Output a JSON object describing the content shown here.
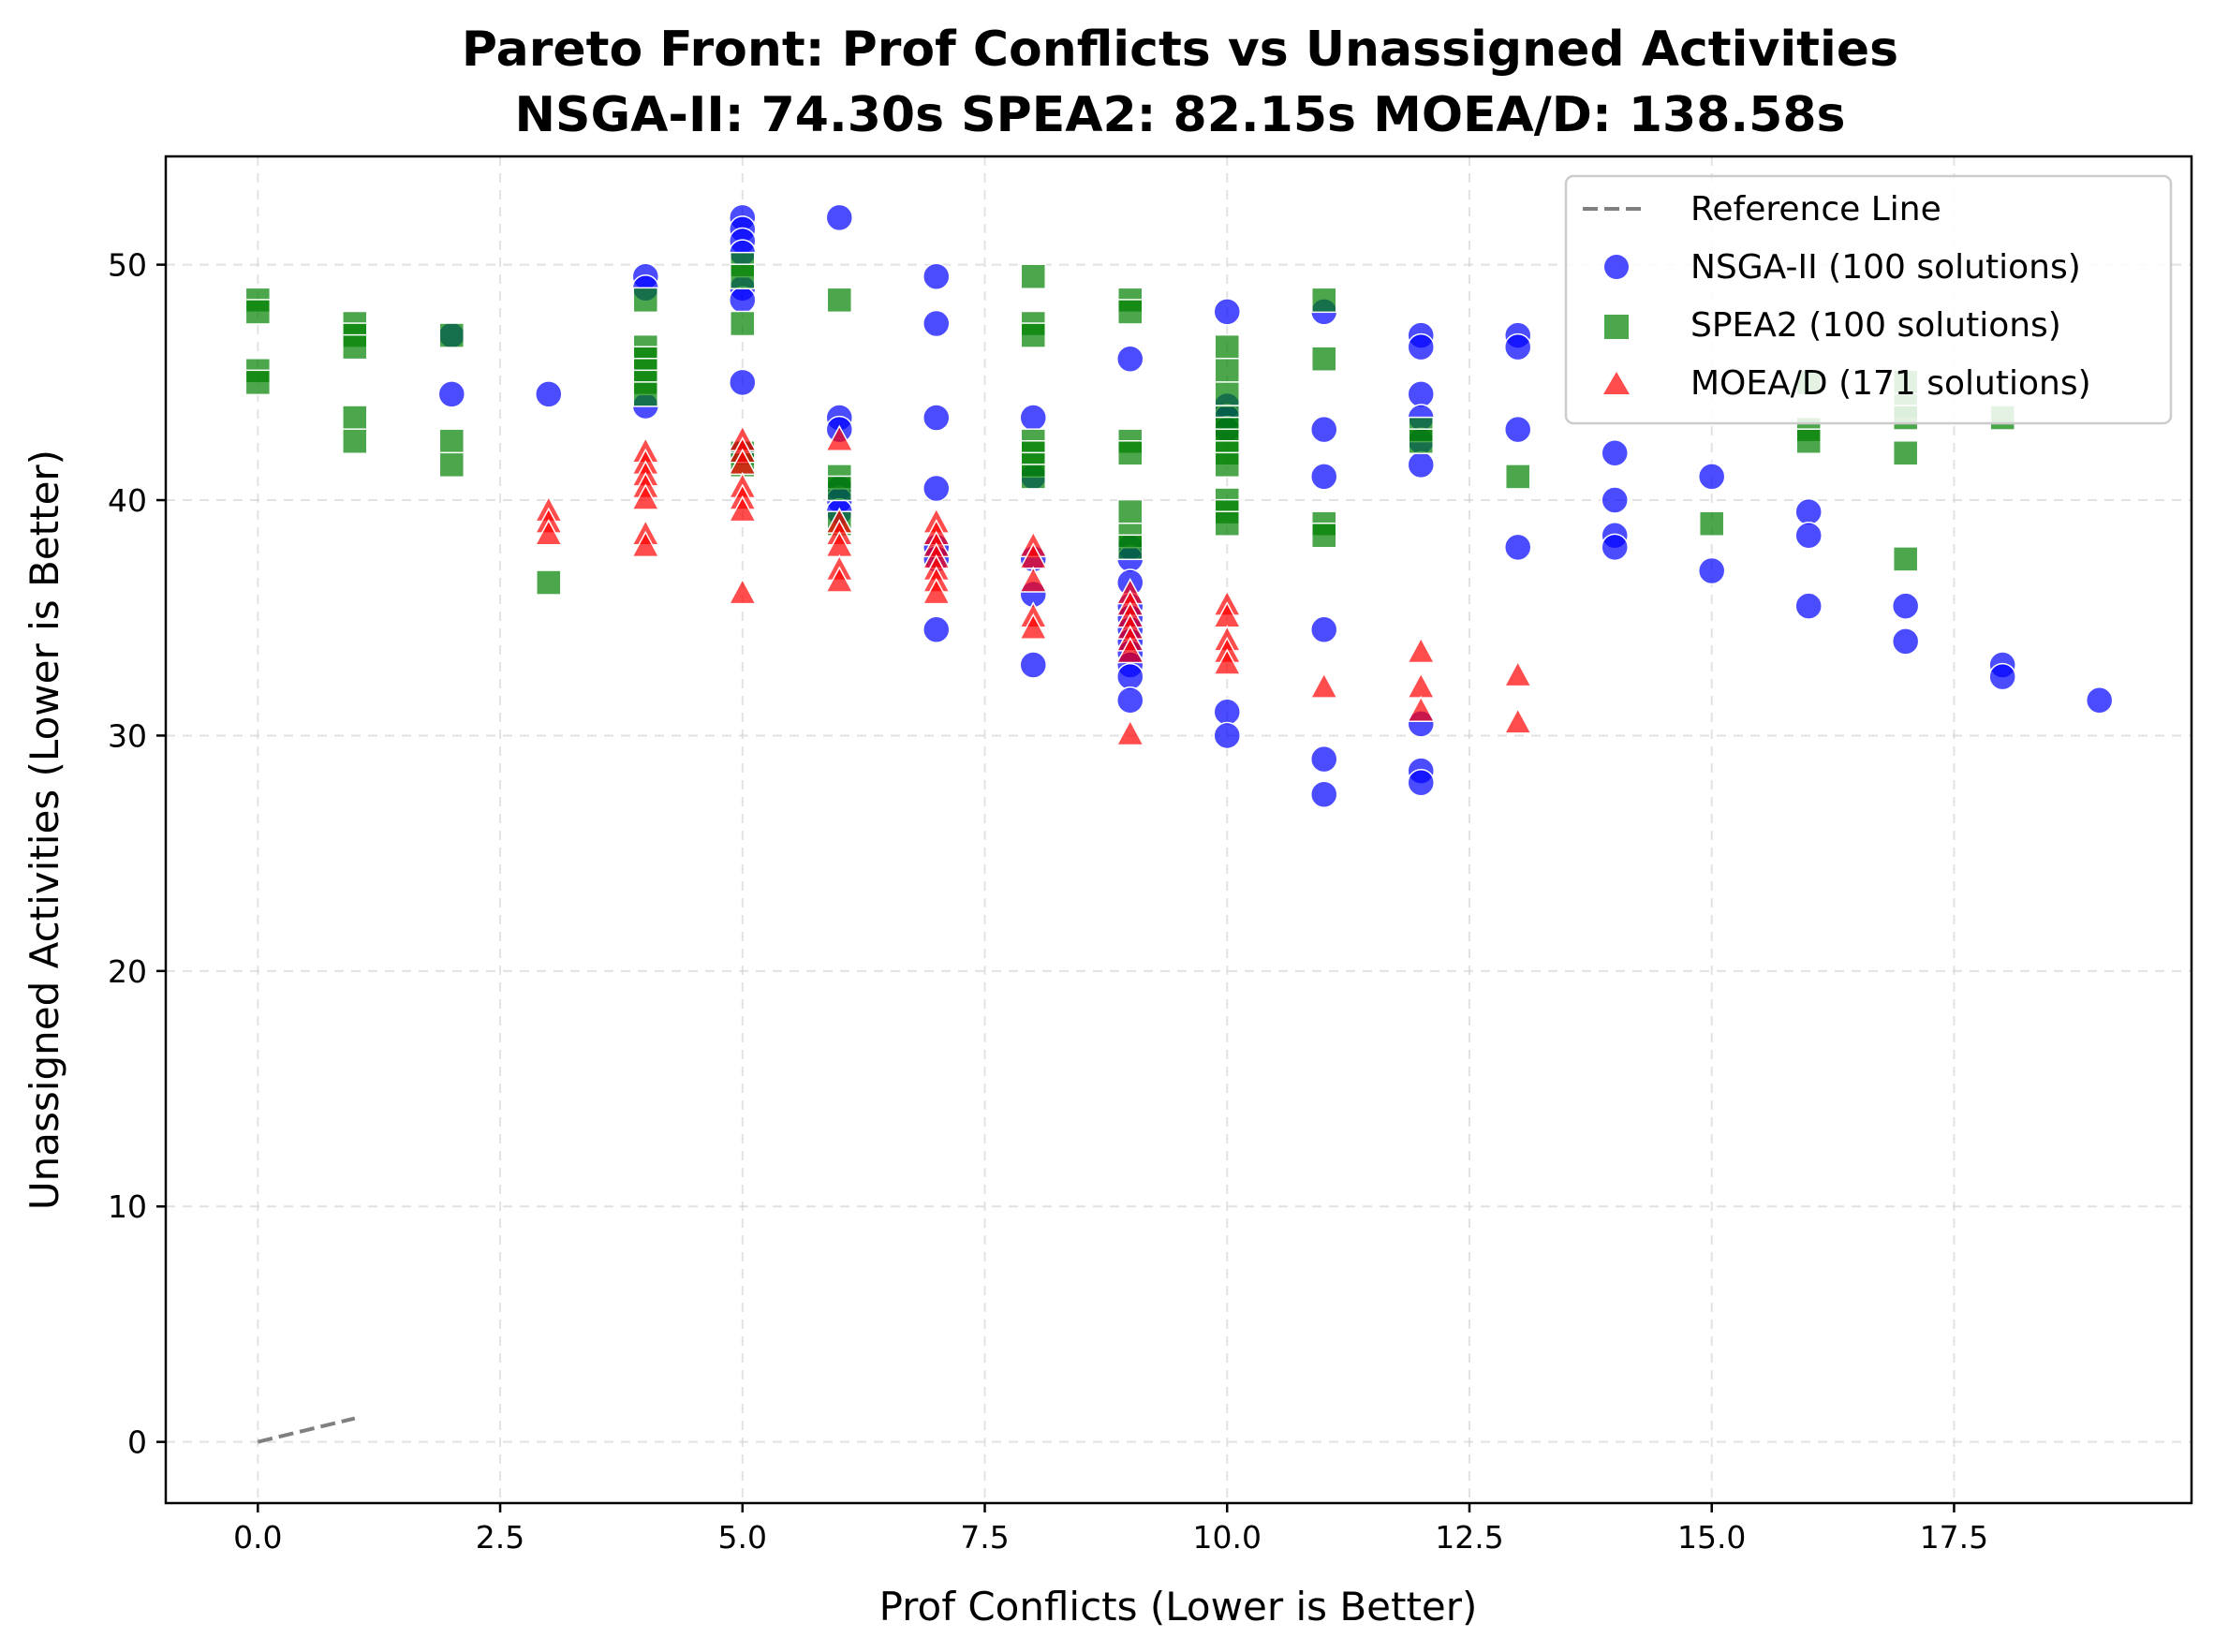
{
  "chart_data": {
    "type": "scatter",
    "title": "Pareto Front: Prof Conflicts vs Unassigned Activities",
    "subtitle": "NSGA-II: 74.30s  SPEA2: 82.15s  MOEA/D: 138.58s",
    "xlabel": "Prof Conflicts (Lower is Better)",
    "ylabel": "Unassigned Activities (Lower is Better)",
    "xlim": [
      -0.95,
      19.95
    ],
    "ylim": [
      -2.6,
      54.6
    ],
    "xticks": [
      0.0,
      2.5,
      5.0,
      7.5,
      10.0,
      12.5,
      15.0,
      17.5
    ],
    "xtick_labels": [
      "0.0",
      "2.5",
      "5.0",
      "7.5",
      "10.0",
      "12.5",
      "15.0",
      "17.5"
    ],
    "yticks": [
      0,
      10,
      20,
      30,
      40,
      50
    ],
    "ytick_labels": [
      "0",
      "10",
      "20",
      "30",
      "40",
      "50"
    ],
    "grid": true,
    "legend_position": "top-right",
    "reference_line": {
      "name": "Reference Line",
      "color": "#808080",
      "points": [
        [
          0,
          0
        ],
        [
          1,
          1
        ]
      ]
    },
    "series": [
      {
        "name": "NSGA-II (100 solutions)",
        "marker": "circle",
        "color": "#0000ff",
        "points": [
          [
            2,
            47
          ],
          [
            2,
            44.5
          ],
          [
            3,
            44.5
          ],
          [
            4,
            49.5
          ],
          [
            4,
            49
          ],
          [
            4,
            44
          ],
          [
            5,
            52
          ],
          [
            5,
            51.5
          ],
          [
            5,
            51
          ],
          [
            5,
            50.5
          ],
          [
            5,
            49
          ],
          [
            5,
            48.5
          ],
          [
            5,
            45
          ],
          [
            5,
            42
          ],
          [
            6,
            52
          ],
          [
            6,
            43.5
          ],
          [
            6,
            43
          ],
          [
            6,
            40.5
          ],
          [
            6,
            40
          ],
          [
            6,
            39.5
          ],
          [
            7,
            49.5
          ],
          [
            7,
            47.5
          ],
          [
            7,
            43.5
          ],
          [
            7,
            40.5
          ],
          [
            7,
            38
          ],
          [
            7,
            37.5
          ],
          [
            7,
            34.5
          ],
          [
            8,
            43.5
          ],
          [
            8,
            41
          ],
          [
            8,
            37.5
          ],
          [
            8,
            36
          ],
          [
            8,
            33
          ],
          [
            9,
            46
          ],
          [
            9,
            38
          ],
          [
            9,
            37.5
          ],
          [
            9,
            36.5
          ],
          [
            9,
            35.5
          ],
          [
            9,
            35
          ],
          [
            9,
            34.5
          ],
          [
            9,
            34
          ],
          [
            9,
            33.5
          ],
          [
            9,
            33
          ],
          [
            9,
            32.5
          ],
          [
            9,
            31.5
          ],
          [
            10,
            48
          ],
          [
            10,
            44
          ],
          [
            10,
            43.5
          ],
          [
            10,
            43
          ],
          [
            10,
            31
          ],
          [
            10,
            30
          ],
          [
            11,
            48
          ],
          [
            11,
            43
          ],
          [
            11,
            41
          ],
          [
            11,
            34.5
          ],
          [
            11,
            29
          ],
          [
            11,
            27.5
          ],
          [
            12,
            47
          ],
          [
            12,
            46.5
          ],
          [
            12,
            44.5
          ],
          [
            12,
            43.5
          ],
          [
            12,
            42.5
          ],
          [
            12,
            41.5
          ],
          [
            12,
            30.5
          ],
          [
            12,
            28.5
          ],
          [
            12,
            28
          ],
          [
            13,
            47
          ],
          [
            13,
            46.5
          ],
          [
            13,
            43
          ],
          [
            13,
            38
          ],
          [
            14,
            42
          ],
          [
            14,
            40
          ],
          [
            14,
            38.5
          ],
          [
            14,
            38
          ],
          [
            15,
            41
          ],
          [
            15,
            37
          ],
          [
            16,
            39.5
          ],
          [
            16,
            38.5
          ],
          [
            16,
            35.5
          ],
          [
            17,
            35.5
          ],
          [
            17,
            34
          ],
          [
            18,
            33
          ],
          [
            18,
            32.5
          ],
          [
            19,
            31.5
          ]
        ]
      },
      {
        "name": "SPEA2 (100 solutions)",
        "marker": "square",
        "color": "#008000",
        "points": [
          [
            0,
            48.5
          ],
          [
            0,
            48
          ],
          [
            0,
            45.5
          ],
          [
            0,
            45
          ],
          [
            1,
            47.5
          ],
          [
            1,
            47
          ],
          [
            1,
            46.5
          ],
          [
            1,
            43.5
          ],
          [
            1,
            42.5
          ],
          [
            2,
            47
          ],
          [
            2,
            42.5
          ],
          [
            2,
            41.5
          ],
          [
            3,
            36.5
          ],
          [
            4,
            48.5
          ],
          [
            4,
            46.5
          ],
          [
            4,
            46
          ],
          [
            4,
            45.5
          ],
          [
            4,
            45
          ],
          [
            4,
            44.5
          ],
          [
            5,
            50
          ],
          [
            5,
            49.5
          ],
          [
            5,
            47.5
          ],
          [
            5,
            42
          ],
          [
            5,
            41.5
          ],
          [
            6,
            48.5
          ],
          [
            6,
            41
          ],
          [
            6,
            40.5
          ],
          [
            6,
            39
          ],
          [
            8,
            49.5
          ],
          [
            8,
            47.5
          ],
          [
            8,
            47
          ],
          [
            8,
            42.5
          ],
          [
            8,
            42
          ],
          [
            8,
            41.5
          ],
          [
            8,
            41
          ],
          [
            9,
            48.5
          ],
          [
            9,
            48
          ],
          [
            9,
            42.5
          ],
          [
            9,
            42
          ],
          [
            9,
            39.5
          ],
          [
            9,
            38.5
          ],
          [
            9,
            38
          ],
          [
            10,
            46.5
          ],
          [
            10,
            45.5
          ],
          [
            10,
            44.5
          ],
          [
            10,
            43.5
          ],
          [
            10,
            43
          ],
          [
            10,
            42.5
          ],
          [
            10,
            42
          ],
          [
            10,
            41.5
          ],
          [
            10,
            40
          ],
          [
            10,
            39.5
          ],
          [
            10,
            39
          ],
          [
            11,
            48.5
          ],
          [
            11,
            46
          ],
          [
            11,
            39
          ],
          [
            11,
            38.5
          ],
          [
            12,
            43
          ],
          [
            12,
            42.5
          ],
          [
            13,
            41
          ],
          [
            15,
            39
          ],
          [
            16,
            45
          ],
          [
            16,
            43
          ],
          [
            16,
            42.5
          ],
          [
            17,
            45
          ],
          [
            17,
            44
          ],
          [
            17,
            43.5
          ],
          [
            17,
            42
          ],
          [
            17,
            37.5
          ],
          [
            18,
            43.5
          ]
        ]
      },
      {
        "name": "MOEA/D (171 solutions)",
        "marker": "triangle",
        "color": "#ff0000",
        "points": [
          [
            3,
            39.5
          ],
          [
            3,
            39
          ],
          [
            3,
            38.5
          ],
          [
            4,
            42
          ],
          [
            4,
            41.5
          ],
          [
            4,
            41
          ],
          [
            4,
            40.5
          ],
          [
            4,
            40
          ],
          [
            4,
            38.5
          ],
          [
            4,
            38
          ],
          [
            5,
            42.5
          ],
          [
            5,
            42
          ],
          [
            5,
            41.5
          ],
          [
            5,
            40.5
          ],
          [
            5,
            40
          ],
          [
            5,
            39.5
          ],
          [
            5,
            36
          ],
          [
            6,
            42.5
          ],
          [
            6,
            39
          ],
          [
            6,
            38.5
          ],
          [
            6,
            38
          ],
          [
            6,
            37
          ],
          [
            6,
            36.5
          ],
          [
            7,
            39
          ],
          [
            7,
            38.5
          ],
          [
            7,
            38
          ],
          [
            7,
            37.5
          ],
          [
            7,
            37
          ],
          [
            7,
            36.5
          ],
          [
            7,
            36
          ],
          [
            8,
            38
          ],
          [
            8,
            37.5
          ],
          [
            8,
            36.5
          ],
          [
            8,
            35
          ],
          [
            8,
            34.5
          ],
          [
            9,
            36
          ],
          [
            9,
            35.5
          ],
          [
            9,
            35
          ],
          [
            9,
            34.5
          ],
          [
            9,
            34
          ],
          [
            9,
            33.5
          ],
          [
            9,
            30
          ],
          [
            10,
            35.5
          ],
          [
            10,
            35
          ],
          [
            10,
            34
          ],
          [
            10,
            33.5
          ],
          [
            10,
            33
          ],
          [
            11,
            32
          ],
          [
            12,
            33.5
          ],
          [
            12,
            32
          ],
          [
            12,
            31
          ],
          [
            13,
            32.5
          ],
          [
            13,
            30.5
          ]
        ]
      }
    ]
  }
}
